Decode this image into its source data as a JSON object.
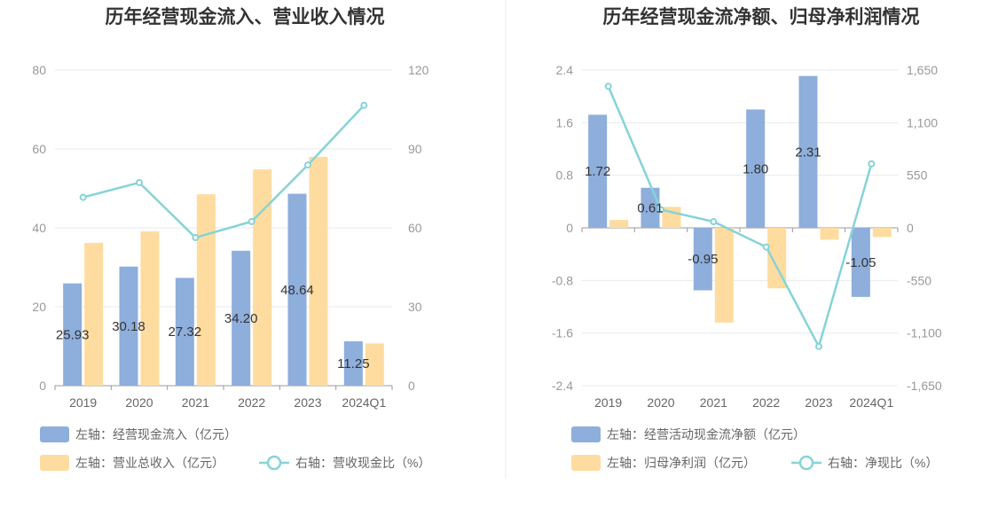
{
  "chart_data": [
    {
      "type": "bar",
      "title": "历年经营现金流入、营业收入情况",
      "categories": [
        "2019",
        "2020",
        "2021",
        "2022",
        "2023",
        "2024Q1"
      ],
      "left_axis": {
        "ticks": [
          "0",
          "20",
          "40",
          "60",
          "80"
        ],
        "min": 0,
        "max": 80
      },
      "right_axis": {
        "ticks": [
          "0",
          "30",
          "60",
          "90",
          "120"
        ],
        "min": 0,
        "max": 120
      },
      "series": [
        {
          "name": "左轴：经营现金流入（亿元）",
          "kind": "bar",
          "axis": "left",
          "color": "#8eaedc",
          "values": [
            25.93,
            30.18,
            27.32,
            34.2,
            48.64,
            11.25
          ],
          "labels": [
            "25.93",
            "30.18",
            "27.32",
            "34.20",
            "48.64",
            "11.25"
          ]
        },
        {
          "name": "左轴：营业总收入（亿元）",
          "kind": "bar",
          "axis": "left",
          "color": "#fedc9f",
          "values": [
            36.2,
            39.1,
            48.5,
            54.8,
            58.0,
            10.7
          ]
        },
        {
          "name": "右轴：营收现金比（%）",
          "kind": "line",
          "axis": "right",
          "color": "#86d3d7",
          "values": [
            71.6,
            77.2,
            56.3,
            62.4,
            83.9,
            106.6
          ]
        }
      ],
      "legend": "bottom-left",
      "grid": true
    },
    {
      "type": "bar",
      "title": "历年经营现金流净额、归母净利润情况",
      "categories": [
        "2019",
        "2020",
        "2021",
        "2022",
        "2023",
        "2024Q1"
      ],
      "left_axis": {
        "ticks": [
          "-2.4",
          "-1.6",
          "-0.8",
          "0",
          "0.8",
          "1.6",
          "2.4"
        ],
        "min": -2.4,
        "max": 2.4
      },
      "right_axis": {
        "ticks": [
          "-1,650",
          "-1,100",
          "-550",
          "0",
          "550",
          "1,100",
          "1,650"
        ],
        "min": -1650,
        "max": 1650
      },
      "series": [
        {
          "name": "左轴：经营活动现金流净额（亿元）",
          "kind": "bar",
          "axis": "left",
          "color": "#8eaedc",
          "values": [
            1.72,
            0.61,
            -0.95,
            1.8,
            2.31,
            -1.05
          ],
          "labels": [
            "1.72",
            "0.61",
            "-0.95",
            "1.80",
            "2.31",
            "-1.05"
          ]
        },
        {
          "name": "左轴：归母净利润（亿元）",
          "kind": "bar",
          "axis": "left",
          "color": "#fedc9f",
          "values": [
            0.12,
            0.32,
            -1.44,
            -0.92,
            -0.18,
            -0.14
          ]
        },
        {
          "name": "右轴：净现比（%）",
          "kind": "line",
          "axis": "right",
          "color": "#86d3d7",
          "values": [
            1480,
            190,
            65,
            -200,
            -1240,
            670
          ]
        }
      ],
      "legend": "bottom-left",
      "grid": true
    }
  ]
}
